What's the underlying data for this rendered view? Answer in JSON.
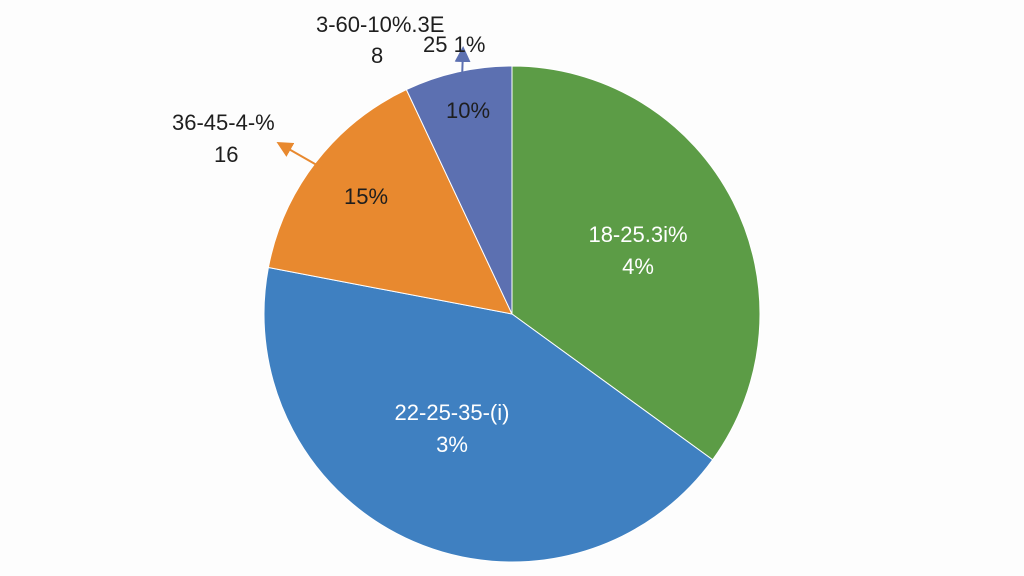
{
  "chart_data": {
    "type": "pie",
    "values": [
      35,
      43,
      15,
      7
    ],
    "colors": [
      "#5c9c46",
      "#3f80c1",
      "#e8892f",
      "#5c70b1"
    ],
    "annotations": [
      [
        "18-25.3i%",
        "4%"
      ],
      [
        "22-25-35-(i)",
        "3%"
      ],
      [
        "15%"
      ],
      [
        "10%"
      ],
      [
        "36-45-4-%",
        "16"
      ],
      [
        "3-60-10%.3E"
      ],
      [
        "8"
      ],
      [
        "25 1%"
      ]
    ]
  }
}
